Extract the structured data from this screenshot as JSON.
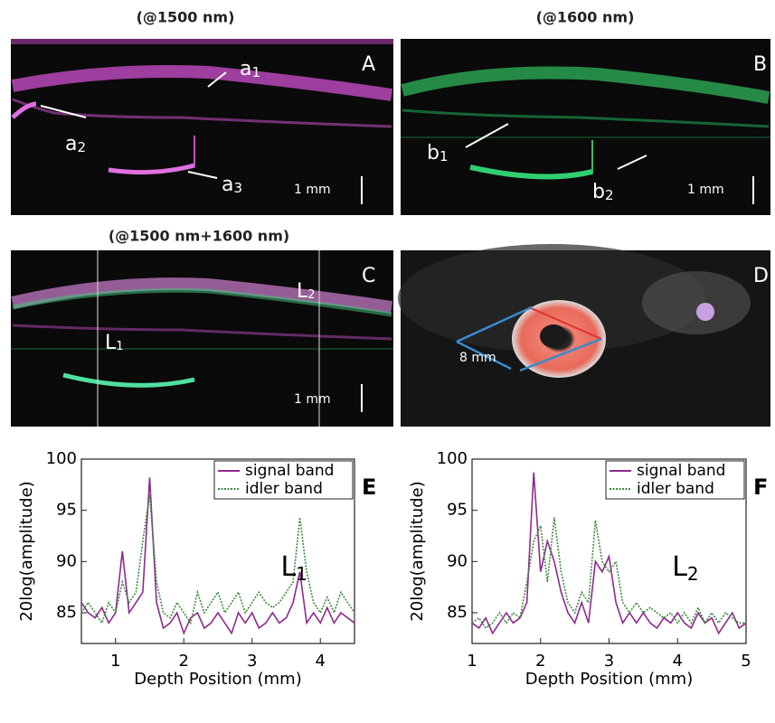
{
  "panels": [
    {
      "title": "(@1500 nm)",
      "letter": "A",
      "scale": "1 mm",
      "labels": [
        {
          "text": "a",
          "sub": "1"
        },
        {
          "text": "a",
          "sub": "2"
        },
        {
          "text": "a",
          "sub": "3"
        }
      ]
    },
    {
      "title": "(@1600 nm)",
      "letter": "B",
      "scale": "1 mm",
      "labels": [
        {
          "text": "b",
          "sub": "1"
        },
        {
          "text": "b",
          "sub": "2"
        }
      ]
    },
    {
      "title": "(@1500 nm+1600 nm)",
      "letter": "C",
      "scale": "1 mm",
      "labels": [
        {
          "text": "L",
          "sub": "1"
        },
        {
          "text": "L",
          "sub": "2"
        }
      ]
    },
    {
      "letter": "D",
      "labels": [
        {
          "text": "8 mm"
        }
      ]
    }
  ],
  "chart_data": [
    {
      "type": "line",
      "panel": "E",
      "annotation": {
        "text": "L",
        "sub": "1"
      },
      "x_label": "Depth Position  (mm)",
      "y_label": "20log(amplitude)",
      "x": [
        0.5,
        0.6,
        0.7,
        0.8,
        0.9,
        1.0,
        1.1,
        1.2,
        1.3,
        1.4,
        1.5,
        1.6,
        1.7,
        1.8,
        1.9,
        2.0,
        2.1,
        2.2,
        2.3,
        2.4,
        2.5,
        2.6,
        2.7,
        2.8,
        2.9,
        3.0,
        3.1,
        3.2,
        3.3,
        3.4,
        3.5,
        3.6,
        3.7,
        3.8,
        3.9,
        4.0,
        4.1,
        4.2,
        4.3,
        4.4,
        4.5
      ],
      "series": [
        {
          "name": "signal band",
          "color": "#8e2a8e",
          "style": "solid",
          "values": [
            86,
            85,
            84.5,
            85.5,
            84,
            85,
            91,
            85,
            86,
            87,
            98.2,
            86,
            83.5,
            84,
            85,
            83,
            84.5,
            85,
            83.5,
            84,
            85,
            84,
            83,
            85,
            84,
            85,
            83.5,
            84,
            85,
            84,
            84.5,
            86,
            89,
            84,
            85,
            84,
            85.5,
            84,
            85,
            84.5,
            84
          ]
        },
        {
          "name": "idler band",
          "color": "#3f8a3f",
          "style": "dotted",
          "values": [
            85,
            86,
            85,
            84,
            86,
            85,
            88,
            86,
            87,
            92,
            96.5,
            88,
            85,
            84.5,
            86,
            85,
            84,
            87,
            85,
            86,
            87,
            85,
            86,
            87,
            85,
            86,
            87,
            86,
            85.5,
            86,
            87,
            88,
            94.3,
            89,
            86,
            85,
            86.5,
            85,
            87,
            86,
            85
          ]
        }
      ],
      "xlim": [
        0.5,
        4.5
      ],
      "ylim": [
        82,
        100
      ],
      "xticks": [
        1,
        2,
        3,
        4
      ],
      "yticks": [
        85,
        90,
        95,
        100
      ]
    },
    {
      "type": "line",
      "panel": "F",
      "annotation": {
        "text": "L",
        "sub": "2"
      },
      "x_label": "Depth Position  (mm)",
      "y_label": "20log(amplitude)",
      "x": [
        1.0,
        1.1,
        1.2,
        1.3,
        1.4,
        1.5,
        1.6,
        1.7,
        1.8,
        1.9,
        2.0,
        2.1,
        2.2,
        2.3,
        2.4,
        2.5,
        2.6,
        2.7,
        2.8,
        2.9,
        3.0,
        3.1,
        3.2,
        3.3,
        3.4,
        3.5,
        3.6,
        3.7,
        3.8,
        3.9,
        4.0,
        4.1,
        4.2,
        4.3,
        4.4,
        4.5,
        4.6,
        4.7,
        4.8,
        4.9,
        5.0
      ],
      "series": [
        {
          "name": "signal band",
          "color": "#8e2a8e",
          "style": "solid",
          "values": [
            84,
            83.5,
            84.5,
            83,
            84,
            85,
            84,
            84.5,
            86,
            98.7,
            89,
            92,
            90,
            87,
            85,
            84,
            86,
            84,
            90,
            89,
            90.5,
            86,
            84,
            85,
            84,
            85,
            84,
            83.5,
            84.5,
            84,
            85,
            84,
            83.5,
            85,
            84,
            84.5,
            83,
            84,
            85,
            83.5,
            84
          ]
        },
        {
          "name": "idler band",
          "color": "#3f8a3f",
          "style": "dotted",
          "values": [
            84,
            84.5,
            83.5,
            84,
            85,
            84,
            85,
            84.5,
            88,
            92,
            93.5,
            88,
            94.3,
            89,
            86,
            85,
            87,
            86,
            94,
            90,
            89,
            90,
            86,
            85,
            86,
            85,
            85.5,
            85,
            84.5,
            85,
            84,
            85,
            84,
            85.5,
            84,
            85,
            84,
            85,
            84.5,
            84,
            84
          ]
        }
      ],
      "xlim": [
        1,
        5
      ],
      "ylim": [
        82,
        100
      ],
      "xticks": [
        1,
        2,
        3,
        4,
        5
      ],
      "yticks": [
        85,
        90,
        95,
        100
      ]
    }
  ]
}
